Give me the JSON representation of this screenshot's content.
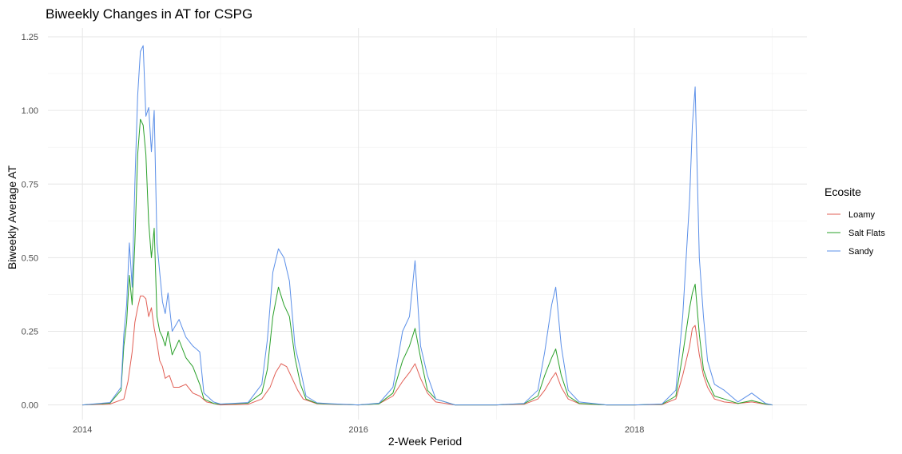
{
  "chart_data": {
    "type": "line",
    "title": "Biweekly Changes in AT for CSPG",
    "xlabel": "2-Week Period",
    "ylabel": "Biweekly Average AT",
    "x_ticks": [
      "2014",
      "2016",
      "2018"
    ],
    "x_range": [
      2013.75,
      2019.25
    ],
    "y_ticks": [
      "0.00",
      "0.25",
      "0.50",
      "0.75",
      "1.00",
      "1.25"
    ],
    "ylim": [
      -0.05,
      1.28
    ],
    "grid": true,
    "legend": {
      "title": "Ecosite",
      "position": "right"
    },
    "series": [
      {
        "name": "Loamy",
        "color": "#E15F55",
        "points": [
          [
            2014.0,
            0
          ],
          [
            2014.2,
            0.003
          ],
          [
            2014.3,
            0.02
          ],
          [
            2014.33,
            0.08
          ],
          [
            2014.36,
            0.18
          ],
          [
            2014.38,
            0.28
          ],
          [
            2014.4,
            0.33
          ],
          [
            2014.42,
            0.37
          ],
          [
            2014.44,
            0.37
          ],
          [
            2014.46,
            0.36
          ],
          [
            2014.48,
            0.3
          ],
          [
            2014.5,
            0.33
          ],
          [
            2014.52,
            0.26
          ],
          [
            2014.54,
            0.21
          ],
          [
            2014.56,
            0.15
          ],
          [
            2014.58,
            0.13
          ],
          [
            2014.6,
            0.09
          ],
          [
            2014.63,
            0.1
          ],
          [
            2014.66,
            0.06
          ],
          [
            2014.7,
            0.06
          ],
          [
            2014.75,
            0.07
          ],
          [
            2014.8,
            0.04
          ],
          [
            2014.85,
            0.03
          ],
          [
            2014.9,
            0.01
          ],
          [
            2015.0,
            0
          ],
          [
            2015.2,
            0.002
          ],
          [
            2015.3,
            0.02
          ],
          [
            2015.36,
            0.06
          ],
          [
            2015.4,
            0.11
          ],
          [
            2015.44,
            0.14
          ],
          [
            2015.48,
            0.13
          ],
          [
            2015.52,
            0.09
          ],
          [
            2015.56,
            0.05
          ],
          [
            2015.6,
            0.02
          ],
          [
            2015.7,
            0.004
          ],
          [
            2015.8,
            0.002
          ],
          [
            2016.0,
            0
          ],
          [
            2016.15,
            0.004
          ],
          [
            2016.25,
            0.03
          ],
          [
            2016.32,
            0.08
          ],
          [
            2016.37,
            0.11
          ],
          [
            2016.41,
            0.14
          ],
          [
            2016.45,
            0.09
          ],
          [
            2016.5,
            0.04
          ],
          [
            2016.56,
            0.01
          ],
          [
            2016.7,
            0
          ],
          [
            2017.0,
            0
          ],
          [
            2017.2,
            0.002
          ],
          [
            2017.3,
            0.02
          ],
          [
            2017.35,
            0.05
          ],
          [
            2017.4,
            0.09
          ],
          [
            2017.43,
            0.11
          ],
          [
            2017.47,
            0.06
          ],
          [
            2017.52,
            0.02
          ],
          [
            2017.6,
            0.004
          ],
          [
            2017.8,
            0
          ],
          [
            2018.0,
            0
          ],
          [
            2018.2,
            0.001
          ],
          [
            2018.3,
            0.02
          ],
          [
            2018.35,
            0.1
          ],
          [
            2018.4,
            0.2
          ],
          [
            2018.42,
            0.26
          ],
          [
            2018.44,
            0.27
          ],
          [
            2018.47,
            0.17
          ],
          [
            2018.5,
            0.1
          ],
          [
            2018.53,
            0.06
          ],
          [
            2018.58,
            0.02
          ],
          [
            2018.65,
            0.01
          ],
          [
            2018.75,
            0.005
          ],
          [
            2018.85,
            0.01
          ],
          [
            2018.95,
            0.002
          ],
          [
            2019.0,
            0
          ]
        ]
      },
      {
        "name": "Salt Flats",
        "color": "#2AA02A",
        "points": [
          [
            2014.0,
            0
          ],
          [
            2014.2,
            0.006
          ],
          [
            2014.28,
            0.05
          ],
          [
            2014.3,
            0.2
          ],
          [
            2014.32,
            0.28
          ],
          [
            2014.34,
            0.44
          ],
          [
            2014.36,
            0.34
          ],
          [
            2014.38,
            0.55
          ],
          [
            2014.4,
            0.85
          ],
          [
            2014.42,
            0.97
          ],
          [
            2014.44,
            0.95
          ],
          [
            2014.46,
            0.85
          ],
          [
            2014.48,
            0.62
          ],
          [
            2014.5,
            0.5
          ],
          [
            2014.52,
            0.6
          ],
          [
            2014.54,
            0.3
          ],
          [
            2014.56,
            0.25
          ],
          [
            2014.58,
            0.23
          ],
          [
            2014.6,
            0.2
          ],
          [
            2014.62,
            0.25
          ],
          [
            2014.65,
            0.17
          ],
          [
            2014.7,
            0.22
          ],
          [
            2014.75,
            0.16
          ],
          [
            2014.8,
            0.13
          ],
          [
            2014.85,
            0.07
          ],
          [
            2014.88,
            0.02
          ],
          [
            2014.95,
            0.005
          ],
          [
            2015.0,
            0.002
          ],
          [
            2015.2,
            0.006
          ],
          [
            2015.3,
            0.04
          ],
          [
            2015.34,
            0.12
          ],
          [
            2015.38,
            0.3
          ],
          [
            2015.42,
            0.4
          ],
          [
            2015.46,
            0.34
          ],
          [
            2015.5,
            0.3
          ],
          [
            2015.54,
            0.16
          ],
          [
            2015.58,
            0.07
          ],
          [
            2015.62,
            0.02
          ],
          [
            2015.7,
            0.005
          ],
          [
            2015.8,
            0.003
          ],
          [
            2016.0,
            0
          ],
          [
            2016.15,
            0.004
          ],
          [
            2016.25,
            0.04
          ],
          [
            2016.32,
            0.15
          ],
          [
            2016.37,
            0.2
          ],
          [
            2016.41,
            0.26
          ],
          [
            2016.45,
            0.16
          ],
          [
            2016.5,
            0.05
          ],
          [
            2016.56,
            0.02
          ],
          [
            2016.7,
            0
          ],
          [
            2017.0,
            0
          ],
          [
            2017.2,
            0.004
          ],
          [
            2017.3,
            0.03
          ],
          [
            2017.35,
            0.1
          ],
          [
            2017.4,
            0.16
          ],
          [
            2017.43,
            0.19
          ],
          [
            2017.47,
            0.1
          ],
          [
            2017.52,
            0.03
          ],
          [
            2017.6,
            0.005
          ],
          [
            2017.8,
            0
          ],
          [
            2018.0,
            0
          ],
          [
            2018.2,
            0.002
          ],
          [
            2018.3,
            0.03
          ],
          [
            2018.35,
            0.17
          ],
          [
            2018.4,
            0.33
          ],
          [
            2018.42,
            0.38
          ],
          [
            2018.44,
            0.41
          ],
          [
            2018.47,
            0.24
          ],
          [
            2018.5,
            0.12
          ],
          [
            2018.53,
            0.08
          ],
          [
            2018.58,
            0.03
          ],
          [
            2018.65,
            0.02
          ],
          [
            2018.75,
            0.005
          ],
          [
            2018.85,
            0.015
          ],
          [
            2018.95,
            0.003
          ],
          [
            2019.0,
            0
          ]
        ]
      },
      {
        "name": "Sandy",
        "color": "#5B8FE8",
        "points": [
          [
            2014.0,
            0
          ],
          [
            2014.2,
            0.008
          ],
          [
            2014.28,
            0.06
          ],
          [
            2014.3,
            0.24
          ],
          [
            2014.32,
            0.34
          ],
          [
            2014.34,
            0.55
          ],
          [
            2014.36,
            0.4
          ],
          [
            2014.38,
            0.75
          ],
          [
            2014.4,
            1.05
          ],
          [
            2014.42,
            1.2
          ],
          [
            2014.44,
            1.22
          ],
          [
            2014.46,
            0.98
          ],
          [
            2014.48,
            1.01
          ],
          [
            2014.5,
            0.86
          ],
          [
            2014.52,
            1.0
          ],
          [
            2014.54,
            0.55
          ],
          [
            2014.56,
            0.45
          ],
          [
            2014.58,
            0.35
          ],
          [
            2014.6,
            0.31
          ],
          [
            2014.62,
            0.38
          ],
          [
            2014.65,
            0.25
          ],
          [
            2014.7,
            0.29
          ],
          [
            2014.75,
            0.23
          ],
          [
            2014.8,
            0.2
          ],
          [
            2014.85,
            0.18
          ],
          [
            2014.88,
            0.04
          ],
          [
            2014.95,
            0.01
          ],
          [
            2015.0,
            0.003
          ],
          [
            2015.2,
            0.008
          ],
          [
            2015.3,
            0.07
          ],
          [
            2015.34,
            0.22
          ],
          [
            2015.38,
            0.45
          ],
          [
            2015.42,
            0.53
          ],
          [
            2015.46,
            0.5
          ],
          [
            2015.5,
            0.42
          ],
          [
            2015.54,
            0.2
          ],
          [
            2015.58,
            0.12
          ],
          [
            2015.62,
            0.03
          ],
          [
            2015.7,
            0.007
          ],
          [
            2015.8,
            0.004
          ],
          [
            2016.0,
            0
          ],
          [
            2016.15,
            0.006
          ],
          [
            2016.25,
            0.06
          ],
          [
            2016.32,
            0.25
          ],
          [
            2016.37,
            0.3
          ],
          [
            2016.41,
            0.49
          ],
          [
            2016.45,
            0.2
          ],
          [
            2016.5,
            0.1
          ],
          [
            2016.56,
            0.02
          ],
          [
            2016.7,
            0
          ],
          [
            2017.0,
            0
          ],
          [
            2017.2,
            0.005
          ],
          [
            2017.3,
            0.05
          ],
          [
            2017.35,
            0.18
          ],
          [
            2017.4,
            0.34
          ],
          [
            2017.43,
            0.4
          ],
          [
            2017.47,
            0.2
          ],
          [
            2017.52,
            0.05
          ],
          [
            2017.6,
            0.01
          ],
          [
            2017.8,
            0
          ],
          [
            2018.0,
            0
          ],
          [
            2018.2,
            0.003
          ],
          [
            2018.3,
            0.05
          ],
          [
            2018.35,
            0.3
          ],
          [
            2018.4,
            0.7
          ],
          [
            2018.42,
            0.95
          ],
          [
            2018.44,
            1.08
          ],
          [
            2018.47,
            0.5
          ],
          [
            2018.5,
            0.3
          ],
          [
            2018.53,
            0.15
          ],
          [
            2018.58,
            0.07
          ],
          [
            2018.65,
            0.05
          ],
          [
            2018.75,
            0.01
          ],
          [
            2018.85,
            0.04
          ],
          [
            2018.95,
            0.005
          ],
          [
            2019.0,
            0
          ]
        ]
      }
    ]
  }
}
